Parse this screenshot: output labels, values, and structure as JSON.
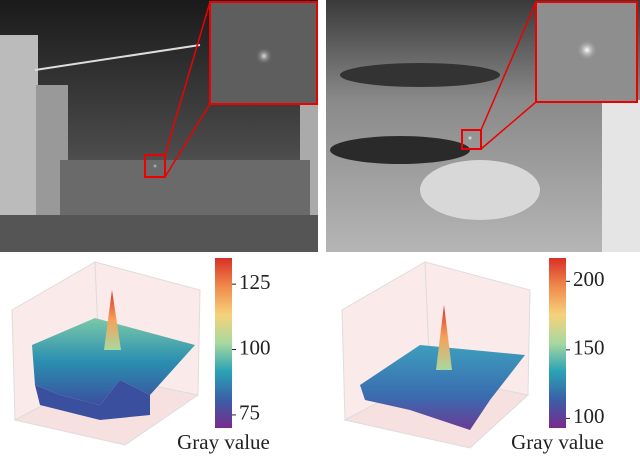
{
  "panels": [
    {
      "colorbar": {
        "lim": [
          70,
          135
        ],
        "ticks": [
          75,
          100,
          125
        ],
        "label": "Gray value",
        "colors": [
          "#7a2a8c",
          "#3a5fa8",
          "#2aa3b5",
          "#a8d8a0",
          "#f5d27a",
          "#f08a4b",
          "#d73027"
        ]
      }
    },
    {
      "colorbar": {
        "lim": [
          93,
          217
        ],
        "ticks": [
          100,
          150,
          200
        ],
        "label": "Gray value",
        "colors": [
          "#7a2a8c",
          "#3a5fa8",
          "#2aa3b5",
          "#a8d8a0",
          "#f5d27a",
          "#f08a4b",
          "#d73027"
        ]
      }
    }
  ]
}
